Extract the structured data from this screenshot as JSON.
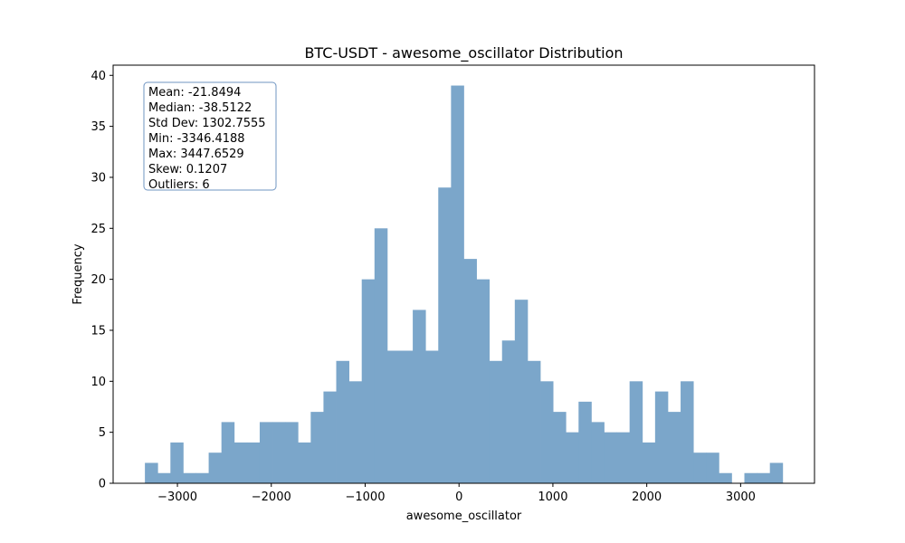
{
  "chart_data": {
    "type": "bar",
    "title": "BTC-USDT - awesome_oscillator Distribution",
    "xlabel": "awesome_oscillator",
    "ylabel": "Frequency",
    "xlim": [
      -3685,
      3787
    ],
    "ylim": [
      0,
      41
    ],
    "x_ticks": [
      -3000,
      -2000,
      -1000,
      0,
      1000,
      2000,
      3000
    ],
    "x_tick_labels": [
      "−3000",
      "−2000",
      "−1000",
      "0",
      "1000",
      "2000",
      "3000"
    ],
    "y_ticks": [
      0,
      5,
      10,
      15,
      20,
      25,
      30,
      35,
      40
    ],
    "bar_color": "#7ba6ca",
    "bins": {
      "start": -3346.4188,
      "width": 135.88,
      "counts": [
        2,
        1,
        4,
        1,
        1,
        3,
        6,
        4,
        4,
        6,
        6,
        6,
        4,
        7,
        9,
        12,
        10,
        20,
        25,
        13,
        13,
        17,
        13,
        29,
        39,
        22,
        20,
        12,
        14,
        18,
        12,
        10,
        7,
        5,
        8,
        6,
        5,
        5,
        10,
        4,
        9,
        7,
        10,
        3,
        3,
        1,
        0,
        1,
        1,
        2
      ]
    },
    "stats_box": {
      "lines": [
        "Mean: -21.8494",
        "Median: -38.5122",
        "Std Dev: 1302.7555",
        "Min: -3346.4188",
        "Max: 3447.6529",
        "Skew: 0.1207",
        "Outliers: 6"
      ],
      "border_color": "#6f95c2"
    },
    "grid": false
  }
}
